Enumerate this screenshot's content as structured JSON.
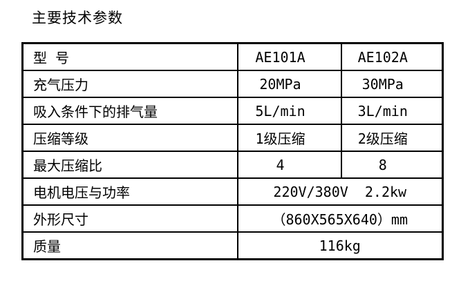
{
  "colors": {
    "background": "#ffffff",
    "text": "#000000",
    "border": "#000000"
  },
  "title": "主要技术参数",
  "table": {
    "rows": [
      {
        "label": "型 号",
        "values": [
          "AE101A",
          "AE102A"
        ],
        "merged": false
      },
      {
        "label": "充气压力",
        "values": [
          "20MPa",
          "30MPa"
        ],
        "merged": false
      },
      {
        "label": "吸入条件下的排气量",
        "values": [
          "5L/min",
          "3L/min"
        ],
        "merged": false
      },
      {
        "label": "压缩等级",
        "values": [
          "1级压缩",
          "2级压缩"
        ],
        "merged": false
      },
      {
        "label": "最大压缩比",
        "values": [
          "4",
          "8"
        ],
        "merged": false
      },
      {
        "label": "电机电压与功率",
        "values": [
          "220V/380V  2.2kw"
        ],
        "merged": true
      },
      {
        "label": "外形尺寸",
        "values": [
          "（860X565X640）mm"
        ],
        "merged": true
      },
      {
        "label": "质量",
        "values": [
          "116kg"
        ],
        "merged": true
      }
    ]
  }
}
